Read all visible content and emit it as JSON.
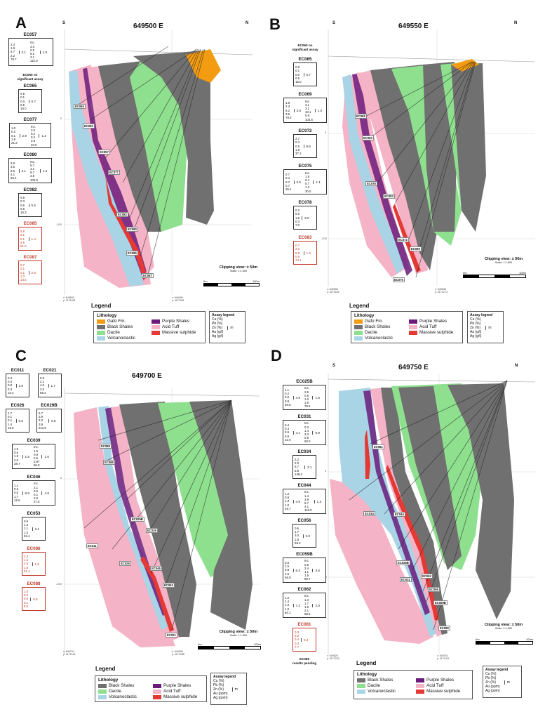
{
  "colors": {
    "gafo": "#f39c12",
    "black_shales": "#707070",
    "dacite": "#8ee08e",
    "volcanoclastic": "#a8d4e6",
    "purple_shales": "#6a1b7a",
    "acid_tuff": "#f4b3c6",
    "massive_sulphide": "#e53935",
    "red_text": "#c0392b"
  },
  "legend_lithology_title": "Lithology",
  "assay_legend": {
    "title": "Assay legend",
    "items": [
      "Cu (%)",
      "Pb (%)",
      "Zn (%)",
      "Au (g/t)",
      "Ag (g/t)"
    ],
    "items_ppm": [
      "Cu (%)",
      "Pb (%)",
      "Zn (%)",
      "Au (ppm)",
      "Ag (ppm)"
    ],
    "unit": "m"
  },
  "clipping_label": "Clipping view: ± 50m",
  "north_label": "N",
  "south_label": "S",
  "panels": {
    "A": {
      "letter": "A",
      "title": "649500 E",
      "legend_title": "Legend",
      "scale_label": "Scale: 1:1,500",
      "scale_start": "0m",
      "scale_end": "100m",
      "coord_left": "x: 649500\ny: 4171001",
      "coord_mid": "x: 649499\ny: 4171361",
      "elev_0": "0",
      "elev_200": "-200",
      "lithology": [
        "Gafo Fm.",
        "Black Shales",
        "Dacite",
        "Volcanoclastic",
        "Purple Shales",
        "Acid Tuff",
        "Massive sulphide"
      ],
      "no_assay_note": "EC060 no\nsignificant assay",
      "holes": [
        {
          "name": "EC057",
          "values": [
            "2.3",
            "1.8",
            "4.7",
            "2.2",
            "78.7"
          ],
          "width": "3.1",
          "inc_values": [
            "Inc.",
            "3.3",
            "2.5",
            "6.2",
            "3.1",
            "110.0"
          ],
          "inc_width": "1.9",
          "red": false
        },
        {
          "name": "EC065",
          "values": [
            "0.6",
            "0.1",
            "0.0",
            "0.5",
            "16.0"
          ],
          "width": "0.7",
          "red": false
        },
        {
          "name": "EC077",
          "values": [
            "1.0",
            "0.2",
            "0.1",
            "1.8",
            "21.2"
          ],
          "width": "2.9",
          "inc_values": [
            "Inc.",
            "2.0",
            "0.2",
            "0.2",
            "3.8",
            "23.0"
          ],
          "inc_width": "1.2",
          "red": false
        },
        {
          "name": "EC080",
          "values": [
            "3.9",
            "3.5",
            "8.5",
            "4.1",
            "96.4"
          ],
          "width": "4.1",
          "inc_values": [
            "Inc.",
            "5.7",
            "4.1",
            "9.7",
            "3.9",
            "102.9"
          ],
          "inc_width": "1.4",
          "red": false
        },
        {
          "name": "EC082",
          "values": [
            "0.6",
            "0.3",
            "0.6",
            "0.6",
            "15.3"
          ],
          "width": "5.5",
          "red": false
        },
        {
          "name": "EC085",
          "values": [
            "5.8",
            "0.1",
            "0.1",
            "4.5",
            "51.0"
          ],
          "width": "1.4",
          "red": true
        },
        {
          "name": "EC087",
          "values": [
            "0.7",
            "0.1",
            "0.1",
            "1.3",
            "13.6"
          ],
          "width": "2.8",
          "red": true
        }
      ],
      "labels": [
        "EC065",
        "EC060",
        "EC057",
        "EC077",
        "EC082",
        "EC080",
        "EC085",
        "EC087"
      ]
    },
    "B": {
      "letter": "B",
      "title": "649550 E",
      "legend_title": "Legend",
      "scale_label": "Scale: 1:1,500",
      "scale_start": "0m",
      "scale_end": "100m",
      "coord_left": "x: 649598\ny: 4171183",
      "coord_mid": "x: 649538\ny: 4171274",
      "elev_0": "0",
      "elev_200": "-200",
      "lithology": [
        "Gafo Fm.",
        "Black Shales",
        "Dacite",
        "Volcanoclastic",
        "Purple Shales",
        "Acid Tuff",
        "Massive sulphide"
      ],
      "no_assay_note": "EC060 no\nsignificant assay",
      "holes": [
        {
          "name": "EC065",
          "values": [
            "0.6",
            "0.1",
            "0.0",
            "0.5",
            "16.0"
          ],
          "width": "0.7",
          "red": false
        },
        {
          "name": "EC069",
          "values": [
            "1.8",
            "2.3",
            "6.2",
            "3.6",
            "79.2"
          ],
          "width": "3.8",
          "inc_values": [
            "Inc.",
            "3.1",
            "3.1",
            "10.1",
            "5.9",
            "103.5"
          ],
          "inc_width": "1.0",
          "red": false
        },
        {
          "name": "EC072",
          "values": [
            "2.7",
            "0.4",
            "0.5",
            "1.9",
            "37.1"
          ],
          "width": "9.6",
          "red": false
        },
        {
          "name": "EC075",
          "values": [
            "0.7",
            "0.4",
            "0.7",
            "0.7",
            "25.1"
          ],
          "width": "3.5",
          "inc_values": [
            "Inc.",
            "1.9",
            "0.4",
            "0.7",
            "1.2",
            "30.0"
          ],
          "inc_width": "1.1",
          "red": false
        },
        {
          "name": "EC078",
          "values": [
            "0.3",
            "0.0",
            "1.5",
            "0.3",
            "7.0"
          ],
          "width": "3.0",
          "red": false
        },
        {
          "name": "EC083",
          "values": [
            "0.7",
            "2.0",
            "5.8",
            "0.5",
            "74.1"
          ],
          "width": "1.3",
          "red": true
        }
      ],
      "labels": [
        "EC065",
        "EC060",
        "EC078",
        "EC083",
        "EC072",
        "EC069",
        "EC075"
      ]
    },
    "C": {
      "letter": "C",
      "title": "649700 E",
      "legend_title": "Legend",
      "scale_label": "Scale: 1:1,500",
      "scale_start": "0m",
      "scale_end": "100m",
      "coord_left": "x: 649754\ny: 4171194",
      "coord_mid": "x: 649695\ny: 4171388",
      "elev_0": "0",
      "elev_200": "-200",
      "lithology": [
        "Black Shales",
        "Dacite",
        "Volcanoclastic",
        "Purple Shales",
        "Acid Tuff",
        "Massive sulphide"
      ],
      "holes": [
        {
          "name": "EC011",
          "values": [
            "0.3",
            "0.3",
            "0.8",
            "0.3",
            "10.4"
          ],
          "width": "1.9",
          "red": false
        },
        {
          "name": "EC021",
          "values": [
            "0.9",
            "2.1",
            "4.0",
            "2.0",
            "68.4"
          ],
          "width": "1.7",
          "red": false
        },
        {
          "name": "EC026",
          "values": [
            "1.7",
            "0.1",
            "0.1",
            "1.4",
            "18.0"
          ],
          "width": "0.5",
          "red": false
        },
        {
          "name": "EC029B",
          "values": [
            "6.7",
            "3.9",
            "9.3",
            "3.9",
            "213.0"
          ],
          "width": "0.8",
          "red": false
        },
        {
          "name": "EC039",
          "values": [
            "1.0",
            "0.6",
            "1.9",
            "2.0",
            "38.7"
          ],
          "width": "1.5",
          "inc_values": [
            "Inc.",
            "1.5",
            "0.9",
            "2.5",
            "2.97",
            "56.0"
          ],
          "inc_width": "1.0",
          "red": false
        },
        {
          "name": "EC046",
          "values": [
            "1.1",
            "0.3",
            "0.0",
            "1.7",
            "15.5"
          ],
          "width": "8.9",
          "inc_values": [
            "Inc.",
            "2.1",
            "0.5",
            "0.1",
            "2.0",
            "27.5"
          ],
          "inc_width": "4.9",
          "red": false
        },
        {
          "name": "EC053",
          "values": [
            "0.9",
            "1.3",
            "1.1",
            "1.3",
            "53.4"
          ],
          "width": "3.1",
          "red": false
        },
        {
          "name": "EC086",
          "values": [
            "2.3",
            "1.6",
            "3.5",
            "1.8",
            "61.4"
          ],
          "width": "1.8",
          "red": true
        },
        {
          "name": "EC088",
          "values": [
            "1.0",
            "0.2",
            "0.6",
            "0.1",
            "8.0"
          ],
          "width": "0.9",
          "red": true
        }
      ],
      "labels": [
        "EC088",
        "EC086",
        "EC029B",
        "EC039",
        "EC011",
        "EC026",
        "EC046",
        "EC053",
        "EC021"
      ]
    },
    "D": {
      "letter": "D",
      "title": "649750 E",
      "legend_title": "Legend",
      "scale_label": "Scale: 1:1,500",
      "scale_start": "0m",
      "scale_end": "100m",
      "coord_left": "x: 649820\ny: 4171220",
      "coord_mid": "x: 649761\ny: 4171411",
      "elev_0": "0",
      "elev_200": "-200",
      "lithology": [
        "Black Shales",
        "Dacite",
        "Volcanoclastic",
        "Purple Shales",
        "Acid Tuff",
        "Massive sulphide"
      ],
      "pending_note": "EC089\nresults pending",
      "holes": [
        {
          "name": "EC025B",
          "values": [
            "1.1",
            "0.2",
            "0.5",
            "0.8",
            "30.5"
          ],
          "width": "4.9",
          "inc_values": [
            "Inc.",
            "2.5",
            "0.5",
            "1.0",
            "1.9",
            "78.5"
          ],
          "inc_width": "1.6",
          "red": false
        },
        {
          "name": "EC031",
          "values": [
            "0.4",
            "0.4",
            "0.9",
            "0.9",
            "22.9"
          ],
          "width": "4.1",
          "inc_values": [
            "Inc.",
            "0.2",
            "1.4",
            "3.3",
            "0.9",
            "60.0"
          ],
          "inc_width": "0.9",
          "red": false
        },
        {
          "name": "EC034",
          "values": [
            "2.2",
            "2.0",
            "6.7",
            "3.5",
            "148.2"
          ],
          "width": "3.1",
          "red": false
        },
        {
          "name": "EC044",
          "values": [
            "1.2",
            "0.9",
            "1.3",
            "1.0",
            "26.7"
          ],
          "width": "4.9",
          "inc_values": [
            "Inc.",
            "1.4",
            "3.9",
            "5.7",
            "4.1",
            "118.0"
          ],
          "inc_width": "1.3",
          "red": false
        },
        {
          "name": "EC056",
          "values": [
            "0.6",
            "1.7",
            "3.0",
            "1.8",
            "69.2"
          ],
          "width": "3.0",
          "red": false
        },
        {
          "name": "EC059B",
          "values": [
            "0.5",
            "1.5",
            "0.8",
            "1.5",
            "56.9"
          ],
          "width": "6.3",
          "inc_values": [
            "Inc.",
            "0.5",
            "2.4",
            "1.1",
            "1.5",
            "80.7"
          ],
          "inc_width": "3.6",
          "red": false
        },
        {
          "name": "EC062",
          "values": [
            "1.0",
            "1.4",
            "1.9",
            "1.0",
            "60.1"
          ],
          "width": "7.2",
          "inc_values": [
            "Inc.",
            "1.3",
            "1.7",
            "1.6",
            "2.1",
            "98.5"
          ],
          "inc_width": "2.0",
          "red": false
        },
        {
          "name": "EC081",
          "values": [
            "0.3",
            "0.2",
            "0.4",
            "0.3",
            "7.7"
          ],
          "width": "5.4",
          "red": true
        }
      ],
      "labels": [
        "EC081",
        "EC034",
        "EC044",
        "EC025B",
        "EC031",
        "EC062",
        "EC056",
        "EC059B",
        "EC089"
      ]
    }
  }
}
